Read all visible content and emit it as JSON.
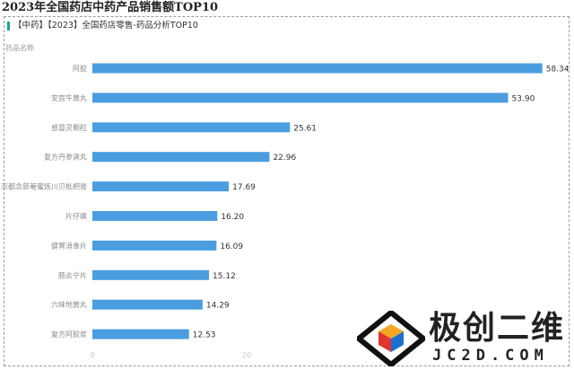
{
  "page_title": "2023年全国药店中药产品销售额TOP10",
  "chart_title": "【中药】【2023】全国药店零售-药品分析TOP10",
  "chart_data": {
    "type": "bar",
    "orientation": "horizontal",
    "title": "【中药】【2023】全国药店零售-药品分析TOP10",
    "ylabel": "药品名称",
    "categories": [
      "阿胶",
      "安宫牛黄丸",
      "感冒灵颗粒",
      "复方丹参滴丸",
      "京都念慈菴蜜炼川贝枇杷膏",
      "片仔癀",
      "健胃消食片",
      "肠炎宁片",
      "六味地黄丸",
      "复方阿胶浆"
    ],
    "values": [
      58.34,
      53.9,
      25.61,
      22.96,
      17.69,
      16.2,
      16.09,
      15.12,
      14.29,
      12.53
    ],
    "value_labels": [
      "58.34",
      "53.90",
      "25.61",
      "22.96",
      "17.69",
      "16.20",
      "16.09",
      "15.12",
      "14.29",
      "12.53"
    ],
    "xticks": [
      0,
      20
    ],
    "xlim": [
      0,
      60
    ],
    "bar_color": "#4a9ee0",
    "grid": false
  },
  "logo": {
    "text": "极创二维",
    "sub": "JC2D.COM",
    "colors": {
      "top": "#f5a623",
      "left": "#e0342f",
      "right": "#1f6fd1",
      "frame": "#111111"
    }
  }
}
